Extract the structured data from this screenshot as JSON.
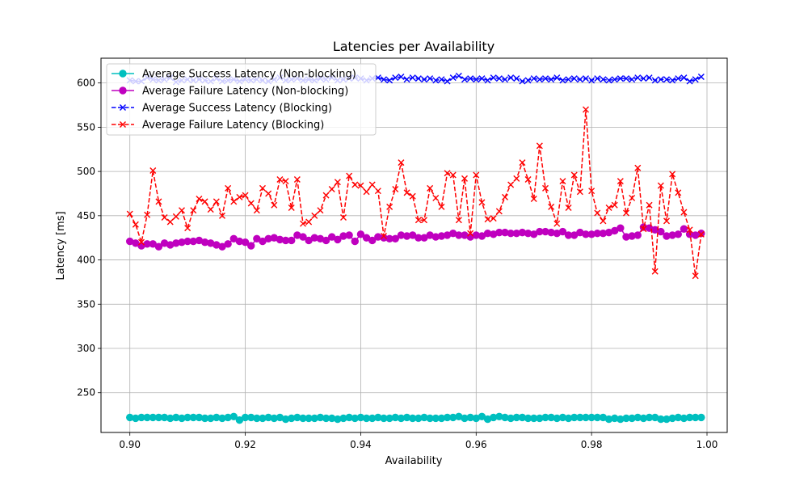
{
  "chart_data": {
    "type": "line",
    "title": "Latencies per Availability",
    "xlabel": "Availability",
    "ylabel": "Latency [ms]",
    "xlim": [
      0.895,
      1.0035
    ],
    "ylim": [
      205,
      628
    ],
    "xticks": [
      0.9,
      0.92,
      0.94,
      0.96,
      0.98,
      1.0
    ],
    "xtick_labels": [
      "0.90",
      "0.92",
      "0.94",
      "0.96",
      "0.98",
      "1.00"
    ],
    "yticks": [
      250,
      300,
      350,
      400,
      450,
      500,
      550,
      600
    ],
    "ytick_labels": [
      "250",
      "300",
      "350",
      "400",
      "450",
      "500",
      "550",
      "600"
    ],
    "grid": true,
    "legend_position": "top-left",
    "x_start": 0.9,
    "x_step": 0.001,
    "series": [
      {
        "name": "Average Success Latency (Non-blocking)",
        "color": "#00bfbf",
        "marker": "circle",
        "linestyle": "solid",
        "values": [
          222,
          221,
          222,
          222,
          222,
          222,
          222,
          221,
          222,
          221,
          222,
          222,
          222,
          221,
          221,
          222,
          221,
          222,
          223,
          219,
          222,
          222,
          221,
          221,
          222,
          221,
          222,
          220,
          221,
          222,
          221,
          221,
          221,
          222,
          221,
          221,
          220,
          221,
          222,
          221,
          222,
          221,
          221,
          222,
          221,
          221,
          222,
          221,
          222,
          221,
          221,
          222,
          221,
          221,
          221,
          222,
          222,
          223,
          221,
          222,
          221,
          223,
          220,
          222,
          223,
          222,
          221,
          222,
          222,
          221,
          221,
          221,
          222,
          222,
          221,
          222,
          221,
          222,
          222,
          222,
          222,
          222,
          222,
          220,
          221,
          220,
          221,
          221,
          222,
          221,
          222,
          222,
          220,
          220,
          221,
          222,
          221,
          222,
          222,
          222
        ]
      },
      {
        "name": "Average Failure Latency (Non-blocking)",
        "color": "#bf00bf",
        "marker": "circle",
        "linestyle": "solid",
        "values": [
          421,
          419,
          416,
          418,
          418,
          415,
          419,
          417,
          419,
          420,
          421,
          421,
          422,
          420,
          419,
          417,
          415,
          418,
          424,
          421,
          420,
          416,
          424,
          421,
          424,
          425,
          423,
          422,
          422,
          428,
          426,
          422,
          425,
          424,
          422,
          426,
          423,
          427,
          428,
          421,
          429,
          425,
          422,
          426,
          425,
          424,
          424,
          428,
          427,
          428,
          425,
          425,
          428,
          426,
          427,
          428,
          430,
          428,
          428,
          426,
          428,
          427,
          430,
          429,
          431,
          431,
          430,
          430,
          431,
          430,
          429,
          432,
          432,
          431,
          430,
          432,
          428,
          428,
          431,
          429,
          429,
          430,
          430,
          431,
          433,
          436,
          426,
          427,
          428,
          437,
          436,
          434,
          432,
          427,
          428,
          429,
          435,
          429,
          428,
          430
        ]
      },
      {
        "name": "Average Success Latency (Blocking)",
        "color": "#0000ff",
        "marker": "x",
        "linestyle": "dashed",
        "values": [
          603,
          602,
          602,
          606,
          604,
          603,
          604,
          606,
          601,
          603,
          604,
          603,
          604,
          603,
          602,
          605,
          602,
          603,
          604,
          602,
          604,
          603,
          604,
          603,
          602,
          604,
          606,
          603,
          604,
          605,
          603,
          604,
          603,
          605,
          604,
          606,
          603,
          604,
          605,
          606,
          605,
          603,
          605,
          606,
          604,
          603,
          606,
          607,
          604,
          606,
          605,
          604,
          605,
          603,
          604,
          602,
          606,
          608,
          604,
          605,
          604,
          605,
          603,
          606,
          605,
          604,
          606,
          605,
          602,
          603,
          605,
          604,
          605,
          604,
          606,
          603,
          604,
          605,
          604,
          605,
          603,
          605,
          604,
          603,
          604,
          605,
          605,
          604,
          606,
          605,
          606,
          603,
          604,
          604,
          603,
          605,
          606,
          602,
          604,
          607
        ]
      },
      {
        "name": "Average Failure Latency (Blocking)",
        "color": "#ff0000",
        "marker": "x",
        "linestyle": "dashed",
        "values": [
          452,
          440,
          420,
          451,
          501,
          466,
          448,
          443,
          449,
          456,
          436,
          456,
          469,
          466,
          457,
          466,
          450,
          481,
          466,
          471,
          473,
          464,
          456,
          481,
          475,
          462,
          491,
          489,
          459,
          491,
          441,
          443,
          450,
          456,
          473,
          480,
          488,
          448,
          495,
          485,
          484,
          477,
          485,
          478,
          427,
          460,
          480,
          510,
          476,
          472,
          445,
          445,
          481,
          470,
          460,
          498,
          496,
          445,
          492,
          430,
          496,
          465,
          446,
          447,
          455,
          471,
          485,
          492,
          510,
          491,
          469,
          529,
          481,
          460,
          441,
          489,
          459,
          496,
          477,
          570,
          478,
          453,
          444,
          459,
          462,
          489,
          453,
          470,
          504,
          435,
          462,
          387,
          484,
          444,
          497,
          476,
          454,
          434,
          382,
          429
        ]
      }
    ]
  }
}
